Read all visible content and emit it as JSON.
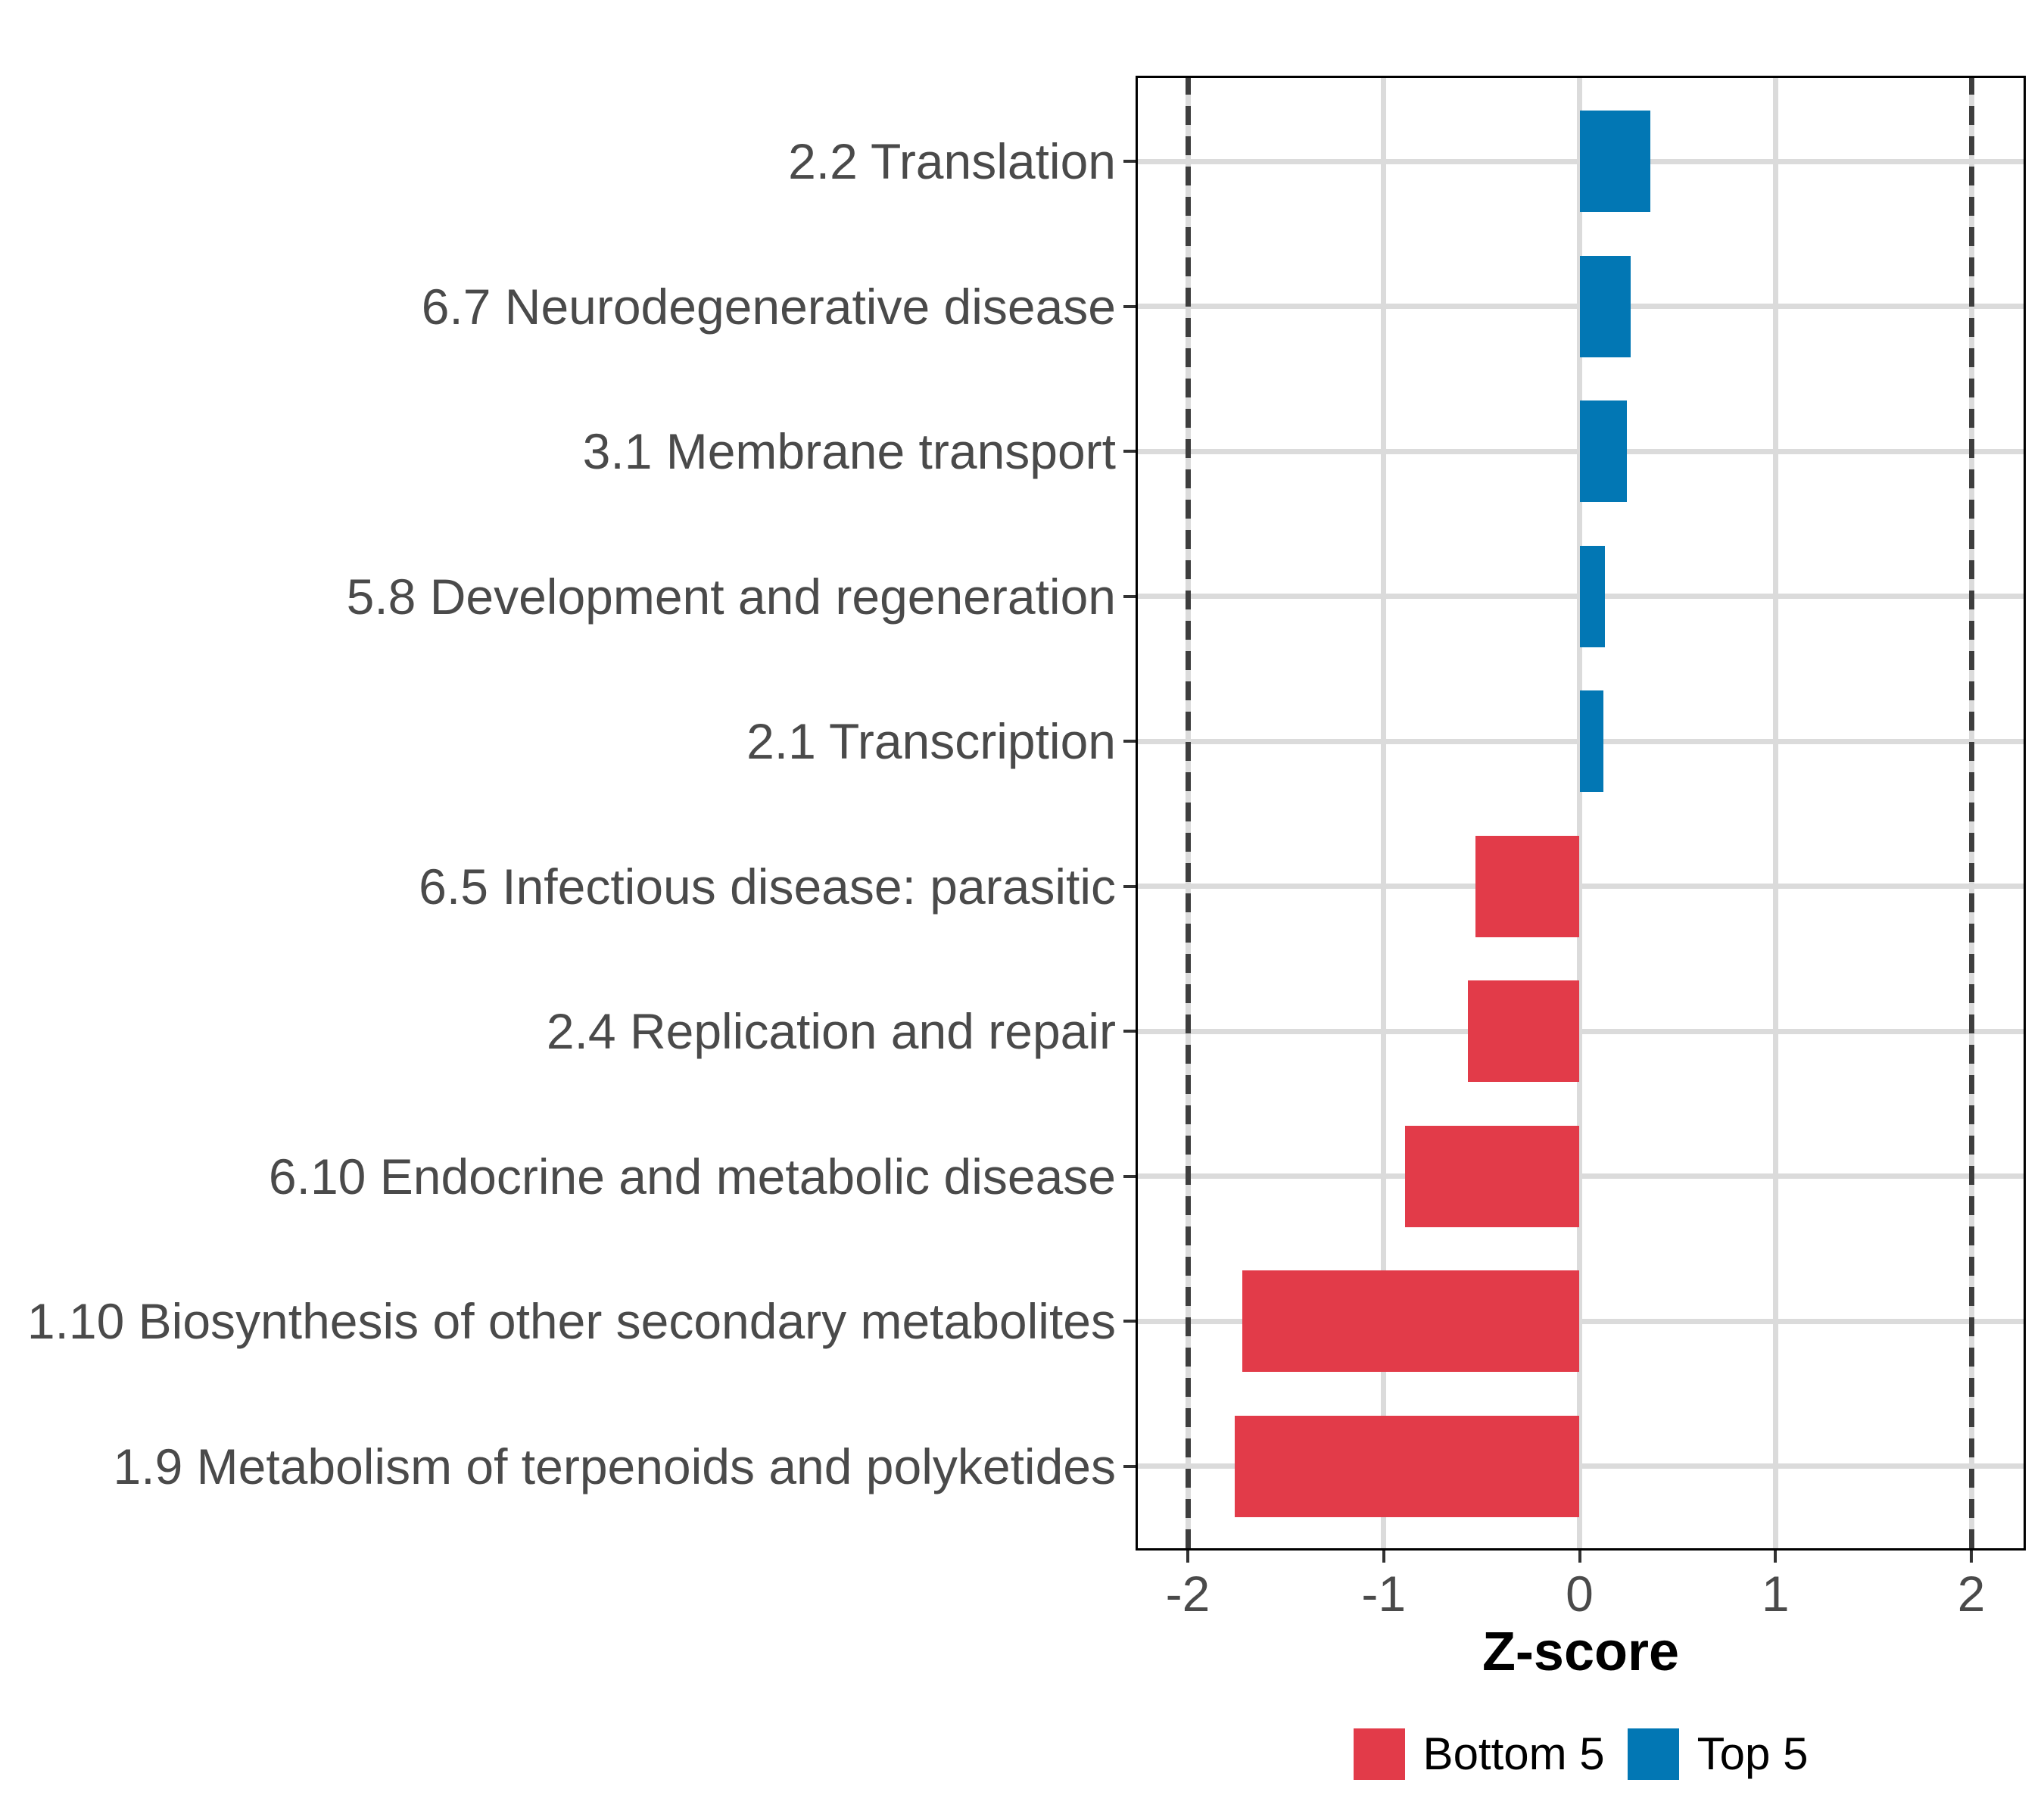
{
  "chart_data": {
    "type": "bar",
    "orientation": "horizontal",
    "title": "",
    "xlabel": "Z-score",
    "ylabel": "",
    "xticks": [
      "-2",
      "-1",
      "0",
      "1",
      "2"
    ],
    "xtick_values": [
      -2,
      -1,
      0,
      1,
      2
    ],
    "xlim": [
      -2.27,
      2.28
    ],
    "grid": "major vertical and one horizontal line per category, light gray",
    "reference_lines_dashed": [
      -2,
      2
    ],
    "legend_position": "bottom-center",
    "bars": [
      {
        "label": "2.2 Translation",
        "value": 0.36,
        "group": "Top 5"
      },
      {
        "label": "6.7 Neurodegenerative disease",
        "value": 0.26,
        "group": "Top 5"
      },
      {
        "label": "3.1 Membrane transport",
        "value": 0.24,
        "group": "Top 5"
      },
      {
        "label": "5.8 Development and regeneration",
        "value": 0.13,
        "group": "Top 5"
      },
      {
        "label": "2.1 Transcription",
        "value": 0.12,
        "group": "Top 5"
      },
      {
        "label": "6.5 Infectious disease: parasitic",
        "value": -0.53,
        "group": "Bottom 5"
      },
      {
        "label": "2.4 Replication and repair",
        "value": -0.57,
        "group": "Bottom 5"
      },
      {
        "label": "6.10 Endocrine and metabolic disease",
        "value": -0.89,
        "group": "Bottom 5"
      },
      {
        "label": "1.10 Biosynthesis of other secondary metabolites",
        "value": -1.72,
        "group": "Bottom 5"
      },
      {
        "label": "1.9 Metabolism of terpenoids and polyketides",
        "value": -1.76,
        "group": "Bottom 5"
      }
    ],
    "legend": [
      {
        "label": "Bottom 5",
        "color": "#E23B49"
      },
      {
        "label": "Top 5",
        "color": "#0277B4"
      }
    ],
    "colors": {
      "negative_bar": "#E23B49",
      "positive_bar": "#0277B4",
      "gridline": "#DBDBDB",
      "axis_text": "#4A4A4A",
      "axis_title": "#000000",
      "panel_border": "#000000",
      "reference_line": "#3E3E3E"
    }
  }
}
